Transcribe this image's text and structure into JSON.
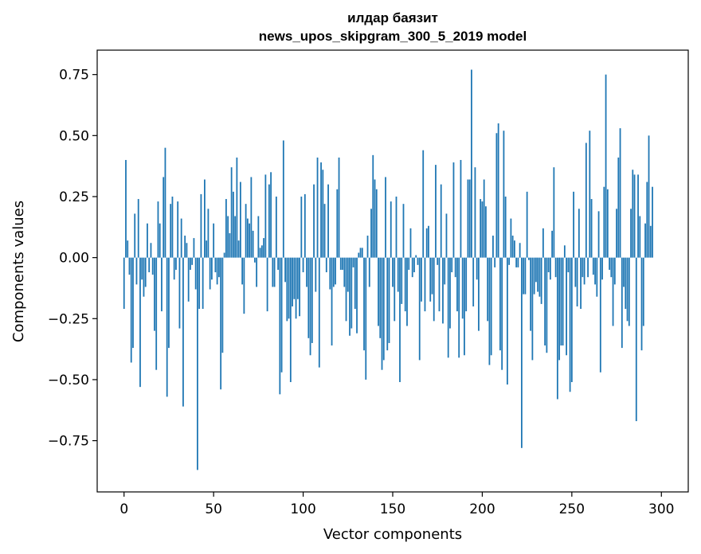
{
  "chart_data": {
    "type": "bar",
    "title": "илдар баязит",
    "subtitle": "news_upos_skipgram_300_5_2019 model",
    "xlabel": "Vector components",
    "ylabel": "Components values",
    "xlim": [
      -15,
      315
    ],
    "ylim": [
      -0.96,
      0.85
    ],
    "x_ticks": [
      0,
      50,
      100,
      150,
      200,
      250,
      300
    ],
    "y_ticks": [
      -0.75,
      -0.5,
      -0.25,
      0.0,
      0.25,
      0.5,
      0.75
    ],
    "x_tick_labels": [
      "0",
      "50",
      "100",
      "150",
      "200",
      "250",
      "300"
    ],
    "y_tick_labels": [
      "−0.75",
      "−0.50",
      "−0.25",
      "0.00",
      "0.25",
      "0.50",
      "0.75"
    ],
    "grid": false,
    "bar_color": "#1f77b4",
    "values": [
      -0.21,
      0.4,
      0.07,
      -0.07,
      -0.43,
      -0.37,
      0.18,
      -0.11,
      0.24,
      -0.53,
      -0.09,
      -0.16,
      -0.12,
      0.14,
      -0.06,
      0.06,
      -0.07,
      -0.3,
      -0.46,
      0.23,
      0.14,
      -0.22,
      0.33,
      0.45,
      -0.57,
      -0.37,
      0.22,
      0.25,
      -0.09,
      -0.05,
      0.23,
      -0.29,
      0.16,
      -0.61,
      0.09,
      0.06,
      -0.18,
      -0.05,
      -0.03,
      0.08,
      -0.13,
      -0.87,
      -0.21,
      0.26,
      -0.21,
      0.32,
      0.07,
      0.2,
      -0.13,
      -0.09,
      0.14,
      -0.06,
      -0.11,
      -0.08,
      -0.54,
      -0.39,
      0.02,
      0.24,
      0.17,
      0.1,
      0.37,
      0.27,
      0.17,
      0.41,
      0.07,
      0.31,
      -0.11,
      -0.23,
      0.22,
      0.16,
      0.14,
      0.33,
      0.11,
      -0.02,
      -0.12,
      0.17,
      0.04,
      0.05,
      0.08,
      0.34,
      -0.22,
      0.3,
      0.35,
      -0.12,
      -0.12,
      0.25,
      -0.05,
      -0.56,
      -0.47,
      0.48,
      -0.1,
      -0.26,
      -0.25,
      -0.51,
      -0.2,
      -0.17,
      -0.25,
      -0.17,
      -0.24,
      0.25,
      -0.06,
      0.26,
      -0.12,
      -0.33,
      -0.4,
      -0.35,
      0.3,
      -0.14,
      0.41,
      -0.45,
      0.39,
      0.36,
      0.22,
      -0.06,
      0.3,
      -0.13,
      -0.36,
      -0.12,
      -0.11,
      0.28,
      0.41,
      -0.05,
      -0.05,
      -0.12,
      -0.26,
      -0.14,
      -0.32,
      -0.29,
      -0.04,
      -0.21,
      -0.31,
      0.02,
      0.04,
      0.04,
      -0.38,
      -0.5,
      0.09,
      -0.12,
      0.2,
      0.42,
      0.32,
      0.28,
      -0.28,
      -0.33,
      -0.46,
      -0.42,
      0.33,
      -0.38,
      -0.35,
      0.23,
      -0.12,
      -0.26,
      0.25,
      -0.14,
      -0.51,
      -0.19,
      0.22,
      -0.22,
      -0.28,
      -0.05,
      0.12,
      -0.08,
      -0.06,
      0.01,
      -0.03,
      -0.42,
      -0.18,
      0.44,
      -0.22,
      0.12,
      0.13,
      -0.18,
      -0.15,
      -0.26,
      0.38,
      -0.03,
      -0.22,
      0.3,
      -0.27,
      -0.11,
      0.18,
      -0.41,
      -0.29,
      -0.06,
      0.39,
      -0.08,
      -0.22,
      -0.41,
      0.4,
      -0.25,
      -0.4,
      -0.22,
      0.32,
      0.32,
      0.77,
      -0.2,
      0.37,
      -0.09,
      -0.3,
      0.24,
      0.23,
      0.32,
      0.21,
      -0.26,
      -0.44,
      -0.4,
      0.09,
      -0.04,
      0.51,
      0.55,
      -0.38,
      -0.46,
      0.52,
      0.25,
      -0.52,
      -0.03,
      0.16,
      0.09,
      0.07,
      -0.04,
      -0.04,
      0.06,
      -0.78,
      -0.15,
      -0.15,
      0.27,
      -0.01,
      -0.3,
      -0.42,
      -0.15,
      -0.1,
      -0.14,
      -0.16,
      -0.19,
      0.12,
      -0.36,
      -0.39,
      -0.06,
      -0.09,
      0.11,
      0.37,
      -0.08,
      -0.58,
      -0.42,
      -0.36,
      -0.36,
      0.05,
      -0.4,
      -0.06,
      -0.55,
      -0.51,
      0.27,
      -0.12,
      -0.2,
      0.2,
      -0.21,
      -0.08,
      -0.11,
      0.47,
      -0.08,
      0.52,
      0.24,
      -0.07,
      -0.11,
      -0.16,
      0.19,
      -0.47,
      -0.09,
      0.29,
      0.75,
      0.28,
      -0.05,
      -0.08,
      -0.28,
      -0.11,
      0.2,
      0.41,
      0.53,
      -0.37,
      -0.12,
      -0.21,
      -0.26,
      -0.28,
      0.2,
      0.36,
      0.34,
      -0.67,
      0.34,
      0.17,
      -0.38,
      -0.28,
      0.14,
      0.31,
      0.5,
      0.13,
      0.29
    ]
  }
}
